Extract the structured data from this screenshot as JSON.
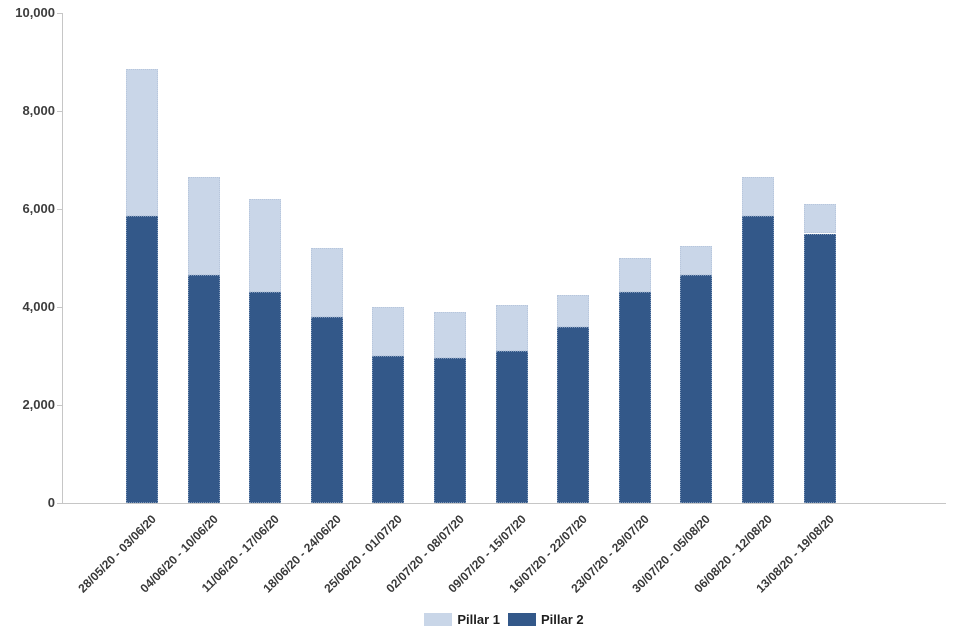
{
  "chart_data": {
    "type": "bar",
    "stacked": true,
    "title": "",
    "xlabel": "",
    "ylabel": "",
    "categories": [
      "28/05/20 - 03/06/20",
      "04/06/20 - 10/06/20",
      "11/06/20 - 17/06/20",
      "18/06/20 - 24/06/20",
      "25/06/20 - 01/07/20",
      "02/07/20 - 08/07/20",
      "09/07/20 - 15/07/20",
      "16/07/20 - 22/07/20",
      "23/07/20 - 29/07/20",
      "30/07/20 - 05/08/20",
      "06/08/20 - 12/08/20",
      "13/08/20 - 19/08/20"
    ],
    "series": [
      {
        "name": "Pillar 1",
        "color": "#c9d6e8",
        "stack_position": "top",
        "values": [
          3000,
          2000,
          1900,
          1400,
          1000,
          950,
          950,
          650,
          700,
          600,
          800,
          600
        ]
      },
      {
        "name": "Pillar 2",
        "color": "#335889",
        "stack_position": "bottom",
        "values": [
          5850,
          4650,
          4300,
          3800,
          3000,
          2950,
          3100,
          3600,
          4300,
          4650,
          5850,
          5500
        ]
      }
    ],
    "ylim": [
      0,
      10000
    ],
    "ytick_step": 2000,
    "ytick_labels": [
      "0",
      "2,000",
      "4,000",
      "6,000",
      "8,000",
      "10,000"
    ],
    "grid": false,
    "legend_position": "bottom",
    "axis_color": "#c6c6c6"
  }
}
